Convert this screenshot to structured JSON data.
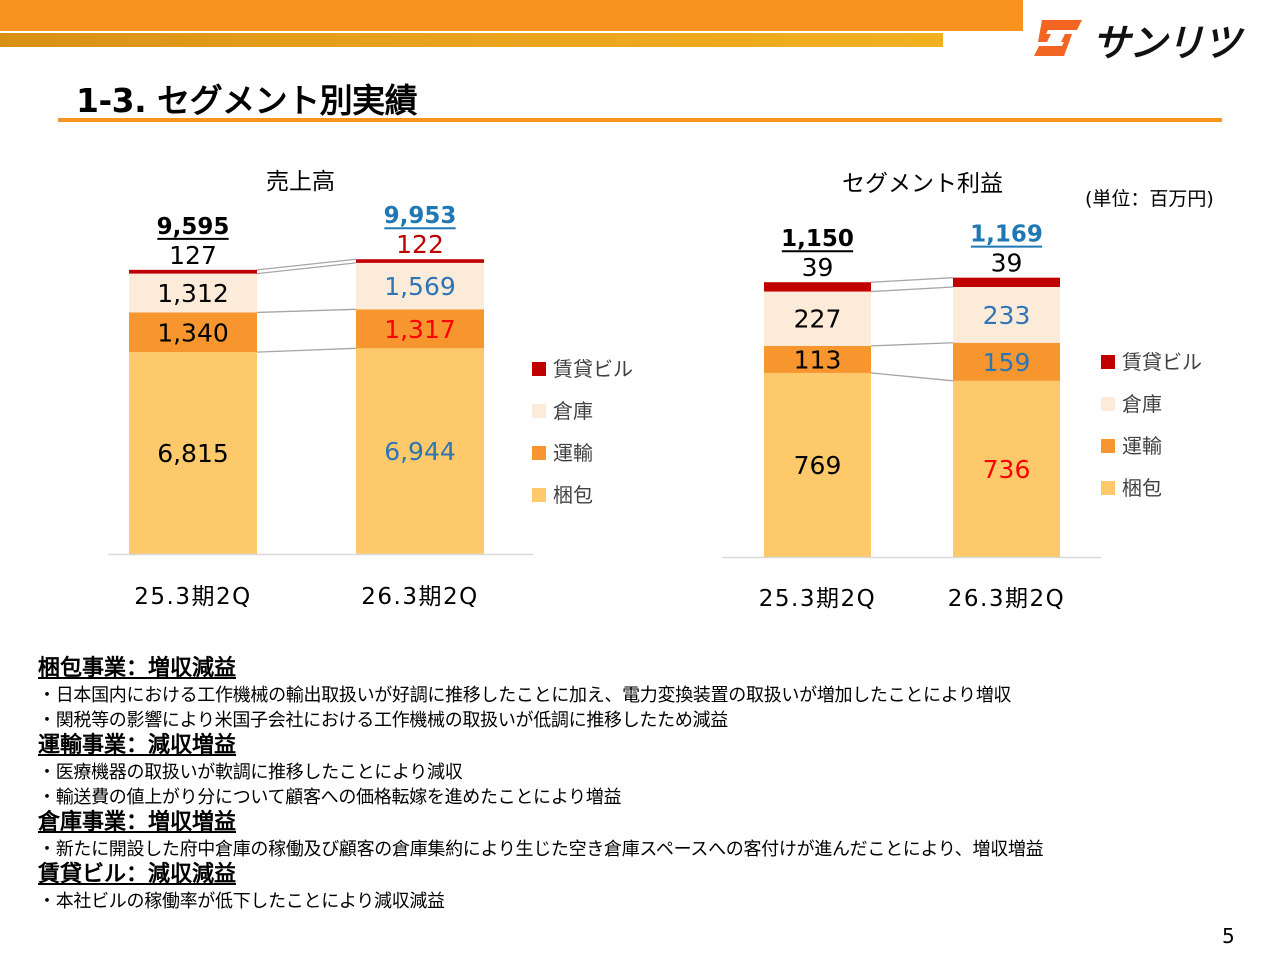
{
  "header": {
    "page_title": "1-3. セグメント別実績",
    "logo_text": "サンリツ"
  },
  "unit_note": "(単位：百万円)",
  "legend": {
    "items": [
      {
        "label": "賃貸ビル",
        "color": "#c00000"
      },
      {
        "label": "倉庫",
        "color": "#fdebd9"
      },
      {
        "label": "運輸",
        "color": "#f7952e"
      },
      {
        "label": "梱包",
        "color": "#fdc96a"
      }
    ]
  },
  "chart_data": [
    {
      "type": "bar",
      "stacked": true,
      "title": "売上高",
      "categories": [
        "25.3期2Q",
        "26.3期2Q"
      ],
      "totals": [
        "9,595",
        "9,953"
      ],
      "total_colors": [
        "#000000",
        "#1f77b4"
      ],
      "ylim": [
        0,
        10500
      ],
      "series": [
        {
          "name": "梱包",
          "values": [
            6815,
            6944
          ],
          "labels": [
            "6,815",
            "6,944"
          ],
          "label_colors": [
            "#000000",
            "#2e75b6"
          ]
        },
        {
          "name": "運輸",
          "values": [
            1340,
            1317
          ],
          "labels": [
            "1,340",
            "1,317"
          ],
          "label_colors": [
            "#000000",
            "#ff0000"
          ]
        },
        {
          "name": "倉庫",
          "values": [
            1312,
            1569
          ],
          "labels": [
            "1,312",
            "1,569"
          ],
          "label_colors": [
            "#000000",
            "#2e75b6"
          ]
        },
        {
          "name": "賃貸ビル",
          "values": [
            127,
            122
          ],
          "labels": [
            "127",
            "122"
          ],
          "label_colors": [
            "#000000",
            "#c00000"
          ]
        }
      ]
    },
    {
      "type": "bar",
      "stacked": true,
      "title": "セグメント利益",
      "categories": [
        "25.3期2Q",
        "26.3期2Q"
      ],
      "totals": [
        "1,150",
        "1,169"
      ],
      "total_colors": [
        "#000000",
        "#1f77b4"
      ],
      "ylim": [
        0,
        1245
      ],
      "series": [
        {
          "name": "梱包",
          "values": [
            769,
            736
          ],
          "labels": [
            "769",
            "736"
          ],
          "label_colors": [
            "#000000",
            "#ff0000"
          ]
        },
        {
          "name": "運輸",
          "values": [
            113,
            159
          ],
          "labels": [
            "113",
            "159"
          ],
          "label_colors": [
            "#000000",
            "#2e75b6"
          ]
        },
        {
          "name": "倉庫",
          "values": [
            227,
            233
          ],
          "labels": [
            "227",
            "233"
          ],
          "label_colors": [
            "#000000",
            "#2e75b6"
          ]
        },
        {
          "name": "賃貸ビル",
          "values": [
            39,
            39
          ],
          "labels": [
            "39",
            "39"
          ],
          "label_colors": [
            "#000000",
            "#000000"
          ]
        }
      ]
    }
  ],
  "descriptions": [
    {
      "heading": "梱包事業：増収減益",
      "bullets": [
        "・日本国内における工作機械の輸出取扱いが好調に推移したことに加え、電力変換装置の取扱いが増加したことにより増収",
        "・関税等の影響により米国子会社における工作機械の取扱いが低調に推移したため減益"
      ]
    },
    {
      "heading": "運輸事業：減収増益",
      "bullets": [
        "・医療機器の取扱いが軟調に推移したことにより減収",
        "・輸送費の値上がり分について顧客への価格転嫁を進めたことにより増益"
      ]
    },
    {
      "heading": "倉庫事業：増収増益",
      "bullets": [
        "・新たに開設した府中倉庫の稼働及び顧客の倉庫集約により生じた空き倉庫スペースへの客付けが進んだことにより、増収増益"
      ]
    },
    {
      "heading": "賃貸ビル：減収減益",
      "bullets": [
        "・本社ビルの稼働率が低下したことにより減収減益"
      ]
    }
  ],
  "page_number": "5"
}
